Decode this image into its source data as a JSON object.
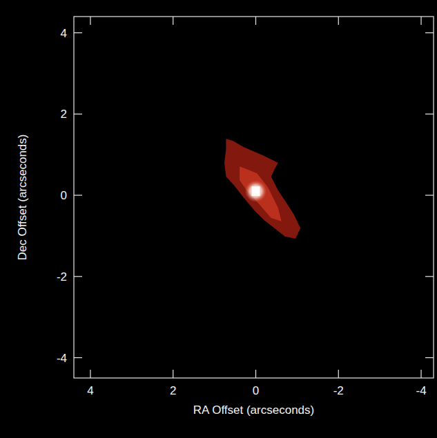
{
  "chart_data": {
    "type": "image",
    "xlabel": "RA Offset (arcseconds)",
    "ylabel": "Dec Offset (arcseconds)",
    "xlim": [
      4.4,
      -4.3
    ],
    "ylim": [
      -4.5,
      4.4
    ],
    "xticks": [
      4,
      2,
      0,
      -2,
      -4
    ],
    "yticks": [
      -4,
      -2,
      0,
      2,
      4
    ],
    "regions": [
      {
        "color": "#8e1a10",
        "x": [
          0.72,
          0.55,
          0.3,
          0.05,
          -0.2,
          -0.54,
          -0.45,
          -0.37,
          -0.54,
          -0.71,
          -0.92,
          -1.08,
          -0.96,
          -0.71,
          -0.45,
          -0.2,
          0.02,
          0.3,
          0.52,
          0.72,
          0.76,
          0.72
        ],
        "y": [
          1.39,
          1.34,
          1.19,
          1.08,
          0.97,
          0.8,
          0.63,
          0.46,
          0.12,
          -0.14,
          -0.47,
          -0.81,
          -1.07,
          -1.02,
          -0.81,
          -0.61,
          -0.39,
          -0.05,
          0.24,
          0.46,
          0.8,
          1.14
        ]
      },
      {
        "color": "#c0321e",
        "x": [
          0.39,
          -0.03,
          -0.29,
          -0.54,
          -0.62,
          -0.37,
          -0.08,
          0.22,
          0.39
        ],
        "y": [
          0.71,
          0.54,
          0.2,
          -0.31,
          -0.64,
          -0.56,
          -0.22,
          0.12,
          0.37
        ]
      }
    ],
    "core": {
      "x": 0.0,
      "y": 0.1,
      "color": "#ffffff"
    }
  }
}
